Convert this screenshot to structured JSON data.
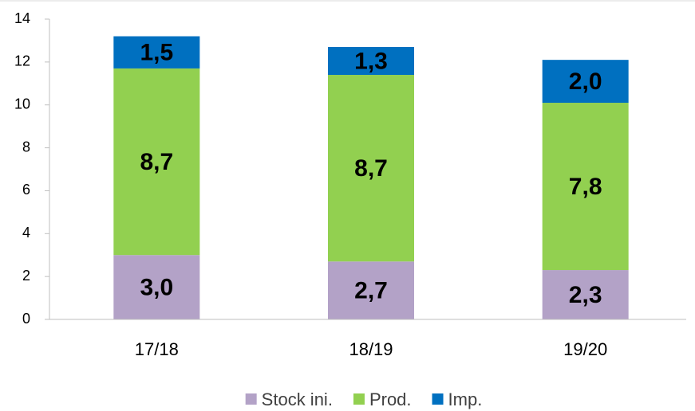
{
  "chart_data": {
    "type": "stacked_bar",
    "categories": [
      "17/18",
      "18/19",
      "19/20"
    ],
    "series": [
      {
        "name": "Stock ini.",
        "color": "#b3a2c7",
        "values": [
          3.0,
          2.7,
          2.3
        ],
        "value_labels": [
          "3,0",
          "2,7",
          "2,3"
        ]
      },
      {
        "name": "Prod.",
        "color": "#92d050",
        "values": [
          8.7,
          8.7,
          7.8
        ],
        "value_labels": [
          "8,7",
          "8,7",
          "7,8"
        ]
      },
      {
        "name": "Imp.",
        "color": "#0070c0",
        "values": [
          1.5,
          1.3,
          2.0
        ],
        "value_labels": [
          "1,5",
          "1,3",
          "2,0"
        ]
      }
    ],
    "ylim": [
      0,
      14
    ],
    "yticks": [
      0,
      2,
      4,
      6,
      8,
      10,
      12,
      14
    ],
    "grid": false,
    "legend": "bottom"
  }
}
